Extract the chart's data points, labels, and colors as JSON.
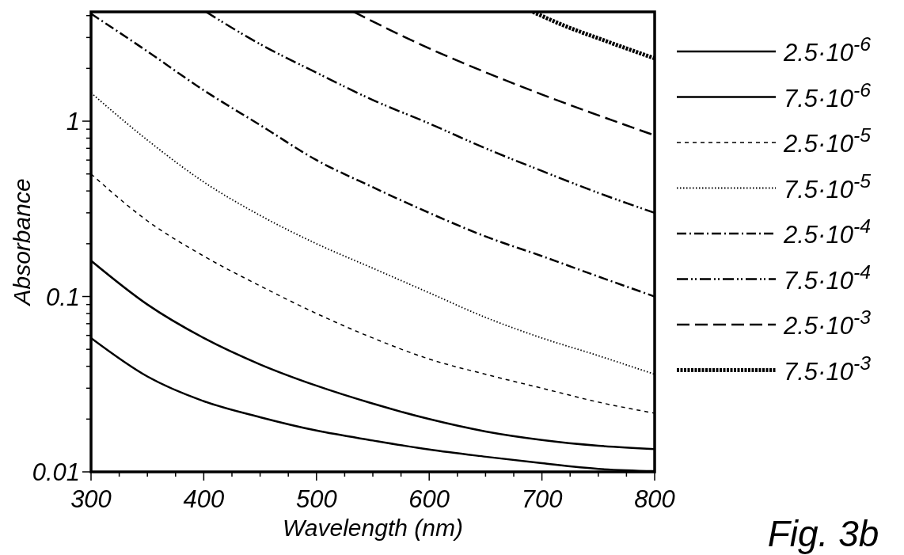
{
  "chart_data": {
    "type": "line",
    "xlabel": "Wavelength (nm)",
    "ylabel": "Absorbance",
    "log": "y",
    "grid": false,
    "legend": "right",
    "marker": "none",
    "xlim": [
      300,
      800
    ],
    "ylim": [
      0.01,
      4.2
    ],
    "xticks": [
      300,
      {
        "value": 325,
        "label": null
      },
      {
        "value": 350,
        "label": null
      },
      {
        "value": 375,
        "label": null
      },
      400,
      {
        "value": 425,
        "label": null
      },
      {
        "value": 450,
        "label": null
      },
      {
        "value": 475,
        "label": null
      },
      500,
      {
        "value": 525,
        "label": null
      },
      {
        "value": 550,
        "label": null
      },
      {
        "value": 575,
        "label": null
      },
      600,
      {
        "value": 625,
        "label": null
      },
      {
        "value": 650,
        "label": null
      },
      {
        "value": 675,
        "label": null
      },
      700,
      {
        "value": 725,
        "label": null
      },
      {
        "value": 750,
        "label": null
      },
      {
        "value": 775,
        "label": null
      },
      800
    ],
    "yticks": [
      0.01,
      {
        "value": 0.02,
        "label": null
      },
      {
        "value": 0.03,
        "label": null
      },
      {
        "value": 0.04,
        "label": null
      },
      {
        "value": 0.05,
        "label": null
      },
      {
        "value": 0.06,
        "label": null
      },
      {
        "value": 0.07,
        "label": null
      },
      {
        "value": 0.08,
        "label": null
      },
      {
        "value": 0.09,
        "label": null
      },
      0.1,
      {
        "value": 0.2,
        "label": null
      },
      {
        "value": 0.3,
        "label": null
      },
      {
        "value": 0.4,
        "label": null
      },
      {
        "value": 0.5,
        "label": null
      },
      {
        "value": 0.6,
        "label": null
      },
      {
        "value": 0.7,
        "label": null
      },
      {
        "value": 0.8,
        "label": null
      },
      {
        "value": 0.9,
        "label": null
      },
      1,
      {
        "value": 2,
        "label": null
      },
      {
        "value": 3,
        "label": null
      },
      {
        "value": 4,
        "label": null
      }
    ],
    "annotations": [
      "Fig. 3b"
    ],
    "series": [
      {
        "name": "2.5·10$^{-6}$",
        "color": "#000000",
        "line_style": "solid",
        "x": [
          300,
          350,
          400,
          450,
          500,
          550,
          600,
          650,
          700,
          750,
          800
        ],
        "values": [
          0.058,
          0.035,
          0.0253,
          0.0205,
          0.0172,
          0.0151,
          0.0134,
          0.0122,
          0.0112,
          0.0104,
          0.0101
        ]
      },
      {
        "name": "7.5·10$^{-6}$",
        "color": "#000000",
        "line_style": "solid",
        "x": [
          300,
          350,
          400,
          450,
          500,
          550,
          600,
          650,
          700,
          750,
          800
        ],
        "values": [
          0.16,
          0.09,
          0.058,
          0.041,
          0.031,
          0.0245,
          0.02,
          0.017,
          0.0152,
          0.0141,
          0.0135
        ]
      },
      {
        "name": "2.5·10$^{-5}$",
        "color": "#000000",
        "line_style": "dashed",
        "x": [
          300,
          350,
          400,
          450,
          500,
          550,
          600,
          650,
          700,
          750,
          800
        ],
        "values": [
          0.5,
          0.27,
          0.17,
          0.115,
          0.08,
          0.058,
          0.044,
          0.036,
          0.03,
          0.025,
          0.0216
        ]
      },
      {
        "name": "7.5·10$^{-5}$",
        "color": "#000000",
        "line_style": "dotted",
        "x": [
          300,
          350,
          400,
          450,
          500,
          550,
          600,
          650,
          700,
          750,
          800
        ],
        "values": [
          1.45,
          0.78,
          0.45,
          0.29,
          0.2,
          0.145,
          0.105,
          0.076,
          0.058,
          0.046,
          0.036
        ]
      },
      {
        "name": "2.5·10$^{-4}$",
        "color": "#000000",
        "line_style": "dashdot",
        "x": [
          300,
          350,
          400,
          450,
          500,
          550,
          600,
          650,
          700,
          750,
          800
        ],
        "values": [
          4.1,
          2.5,
          1.5,
          0.95,
          0.6,
          0.42,
          0.3,
          0.22,
          0.17,
          0.13,
          0.1
        ]
      },
      {
        "name": "7.5·10$^{-4}$",
        "color": "#000000",
        "line_style": "dashdotdot",
        "x": [
          402,
          450,
          500,
          550,
          600,
          650,
          700,
          750,
          800
        ],
        "values": [
          4.2,
          2.75,
          1.89,
          1.32,
          0.97,
          0.7,
          0.52,
          0.39,
          0.3
        ]
      },
      {
        "name": "2.5·10$^{-3}$",
        "color": "#000000",
        "line_style": "longdash",
        "x": [
          533,
          550,
          600,
          650,
          700,
          750,
          800
        ],
        "values": [
          4.2,
          3.7,
          2.6,
          1.9,
          1.42,
          1.08,
          0.83
        ]
      },
      {
        "name": "7.5·10$^{-3}$",
        "color": "#000000",
        "line_style": "squaredot",
        "x": [
          692,
          720,
          750,
          800
        ],
        "values": [
          4.2,
          3.5,
          2.97,
          2.28
        ]
      }
    ]
  }
}
